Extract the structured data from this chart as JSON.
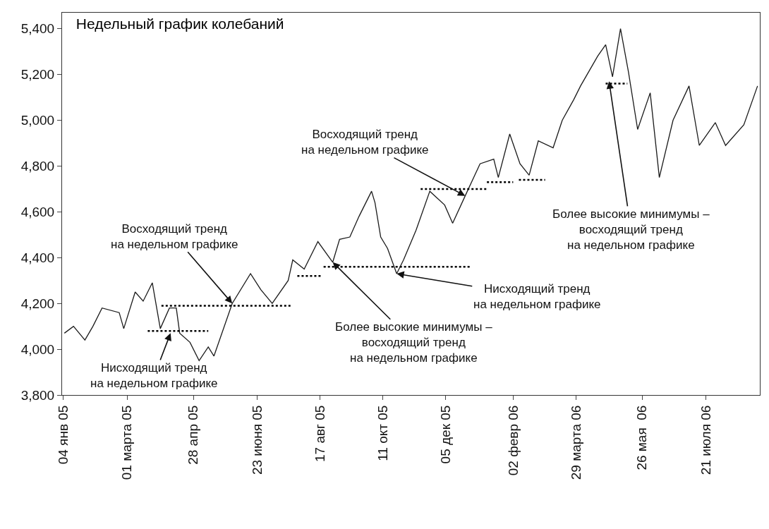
{
  "chart_data": {
    "type": "line",
    "title": "Недельный график колебаний",
    "xlim": [
      "2005-01-03",
      "2006-09-06"
    ],
    "xticks": [
      {
        "value": "2005-01-04",
        "label": "04 янв 05"
      },
      {
        "value": "2005-03-01",
        "label": "01 марта 05"
      },
      {
        "value": "2005-04-28",
        "label": "28 апр 05"
      },
      {
        "value": "2005-06-23",
        "label": "23 июня 05"
      },
      {
        "value": "2005-08-17",
        "label": "17 авг 05"
      },
      {
        "value": "2005-10-11",
        "label": "11 окт 05"
      },
      {
        "value": "2005-12-05",
        "label": "05 дек 05"
      },
      {
        "value": "2006-02-02",
        "label": "02 февр 06"
      },
      {
        "value": "2006-03-29",
        "label": "29 марта 06"
      },
      {
        "value": "2006-05-26",
        "label": "26 мая  06"
      },
      {
        "value": "2006-07-21",
        "label": "21 июля 06"
      }
    ],
    "ylim": [
      3800,
      5470
    ],
    "yticks": [
      {
        "value": 3800,
        "label": "3,800"
      },
      {
        "value": 4000,
        "label": "4,000"
      },
      {
        "value": 4200,
        "label": "4,200"
      },
      {
        "value": 4400,
        "label": "4,400"
      },
      {
        "value": 4600,
        "label": "4,600"
      },
      {
        "value": 4800,
        "label": "4,800"
      },
      {
        "value": 5000,
        "label": "5,000"
      },
      {
        "value": 5200,
        "label": "5,200"
      },
      {
        "value": 5400,
        "label": "5,400"
      }
    ],
    "series": [
      {
        "color": "#1a1a1a",
        "line_style": "solid",
        "x": [
          "2005-01-05",
          "2005-01-13",
          "2005-01-23",
          "2005-01-30",
          "2005-02-07",
          "2005-02-22",
          "2005-02-26",
          "2005-03-08",
          "2005-03-15",
          "2005-03-23",
          "2005-03-30",
          "2005-04-07",
          "2005-04-13",
          "2005-04-16",
          "2005-04-25",
          "2005-05-03",
          "2005-05-11",
          "2005-05-16",
          "2005-06-01",
          "2005-06-17",
          "2005-06-26",
          "2005-07-06",
          "2005-07-20",
          "2005-07-24",
          "2005-08-03",
          "2005-08-15",
          "2005-08-28",
          "2005-09-03",
          "2005-09-12",
          "2005-09-20",
          "2005-10-01",
          "2005-10-04",
          "2005-10-09",
          "2005-10-15",
          "2005-10-23",
          "2005-10-29",
          "2005-11-09",
          "2005-11-21",
          "2005-12-04",
          "2005-12-11",
          "2005-12-22",
          "2006-01-04",
          "2006-01-16",
          "2006-01-20",
          "2006-01-30",
          "2006-02-08",
          "2006-02-16",
          "2006-02-24",
          "2006-03-09",
          "2006-03-17",
          "2006-03-27",
          "2006-04-02",
          "2006-04-17",
          "2006-04-24",
          "2006-04-30",
          "2006-05-07",
          "2006-05-14",
          "2006-05-22",
          "2006-06-02",
          "2006-06-10",
          "2006-06-22",
          "2006-07-06",
          "2006-07-15",
          "2006-07-29",
          "2006-08-07",
          "2006-08-23",
          "2006-09-04"
        ],
        "values": [
          4070,
          4100,
          4040,
          4100,
          4180,
          4160,
          4090,
          4250,
          4210,
          4290,
          4090,
          4180,
          4180,
          4070,
          4030,
          3950,
          4010,
          3970,
          4200,
          4330,
          4260,
          4200,
          4300,
          4390,
          4350,
          4470,
          4380,
          4480,
          4490,
          4580,
          4690,
          4640,
          4490,
          4440,
          4330,
          4390,
          4520,
          4690,
          4630,
          4550,
          4670,
          4810,
          4830,
          4750,
          4940,
          4810,
          4760,
          4910,
          4880,
          5000,
          5090,
          5150,
          5280,
          5330,
          5190,
          5400,
          5210,
          4960,
          5120,
          4750,
          5000,
          5150,
          4890,
          4990,
          4890,
          4980,
          5150
        ]
      },
      {
        "color": "#000000",
        "line_style": "dotted",
        "x": [
          "2005-03-31",
          "2005-07-22"
        ],
        "values": [
          4190,
          4190
        ]
      },
      {
        "color": "#000000",
        "line_style": "dotted",
        "x": [
          "2005-03-19",
          "2005-05-11"
        ],
        "values": [
          4080,
          4080
        ]
      },
      {
        "color": "#000000",
        "line_style": "dotted",
        "x": [
          "2005-07-28",
          "2005-08-18"
        ],
        "values": [
          4320,
          4320
        ]
      },
      {
        "color": "#000000",
        "line_style": "dotted",
        "x": [
          "2005-08-20",
          "2005-12-27"
        ],
        "values": [
          4360,
          4360
        ]
      },
      {
        "color": "#000000",
        "line_style": "dotted",
        "x": [
          "2005-11-13",
          "2006-01-10"
        ],
        "values": [
          4700,
          4700
        ]
      },
      {
        "color": "#000000",
        "line_style": "dotted",
        "x": [
          "2006-01-10",
          "2006-02-02"
        ],
        "values": [
          4730,
          4730
        ]
      },
      {
        "color": "#000000",
        "line_style": "dotted",
        "x": [
          "2006-02-07",
          "2006-03-02"
        ],
        "values": [
          4740,
          4740
        ]
      },
      {
        "color": "#000000",
        "line_style": "dotted",
        "x": [
          "2006-04-24",
          "2006-05-13"
        ],
        "values": [
          5160,
          5160
        ]
      }
    ],
    "annotations": [
      {
        "text": "Восходящий тренд\nна недельном графике",
        "x": "2005-06-01",
        "y": 4200
      },
      {
        "text": "Нисходящий тренд\nна недельном графике",
        "x": "2005-04-08",
        "y": 4070
      },
      {
        "text": "Более высокие минимумы –\nвосходящий тренд\nна недельном графике",
        "x": "2005-08-28",
        "y": 4380
      },
      {
        "text": "Нисходящий тренд\nна недельном графике",
        "x": "2005-10-23",
        "y": 4330
      },
      {
        "text": "Восходящий тренд\nна недельном графике",
        "x": "2005-12-22",
        "y": 4670
      },
      {
        "text": "Более высокие минимумы –\nвосходящий тренд\nна недельном графике",
        "x": "2006-04-27",
        "y": 5170
      }
    ]
  }
}
